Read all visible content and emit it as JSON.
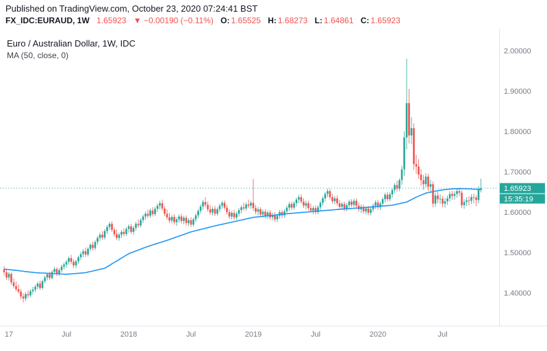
{
  "header": {
    "published": "Published on TradingView.com, October 23, 2020 07:24:41 BST",
    "symbol": "FX_IDC:EURAUD, 1W",
    "last": "1.65923",
    "change": "▼ −0.00190 (−0.11%)",
    "ohlc": [
      {
        "label": "O:",
        "value": "1.65525"
      },
      {
        "label": "H:",
        "value": "1.68273"
      },
      {
        "label": "L:",
        "value": "1.64861"
      },
      {
        "label": "C:",
        "value": "1.65923"
      }
    ]
  },
  "legend": {
    "title": "Euro / Australian Dollar, 1W, IDC",
    "ma": "MA (50, close, 0)"
  },
  "axis": {
    "price_ticks": [
      "2.00000",
      "1.90000",
      "1.80000",
      "1.70000",
      "1.60000",
      "1.50000",
      "1.40000"
    ],
    "price_badge": "1.65923",
    "countdown_badge": "15:35:19"
  },
  "colors": {
    "up": "#26a69a",
    "down": "#ef5350",
    "ma": "#2196f3",
    "axis_text": "#787b86",
    "border": "#e0e3eb",
    "badge": "#26a69a",
    "price_line": "#26a69a"
  },
  "chart_data": {
    "type": "candlestick",
    "title": "Euro / Australian Dollar, 1W, IDC",
    "symbol": "FX_IDC:EURAUD",
    "interval": "1W",
    "ylim": [
      1.36,
      2.04
    ],
    "y_ticks": [
      2.0,
      1.9,
      1.8,
      1.7,
      1.6,
      1.5,
      1.4
    ],
    "x_label_anchors": [
      [
        2,
        "17"
      ],
      [
        26,
        "Jul"
      ],
      [
        52,
        "2018"
      ],
      [
        78,
        "Jul"
      ],
      [
        104,
        "2019"
      ],
      [
        130,
        "Jul"
      ],
      [
        156,
        "2020"
      ],
      [
        183,
        "Jul"
      ]
    ],
    "last_close": 1.65923,
    "ma50_anchors": [
      [
        0,
        1.459
      ],
      [
        13,
        1.45
      ],
      [
        26,
        1.446
      ],
      [
        34,
        1.45
      ],
      [
        42,
        1.461
      ],
      [
        52,
        1.497
      ],
      [
        60,
        1.515
      ],
      [
        68,
        1.53
      ],
      [
        78,
        1.551
      ],
      [
        88,
        1.566
      ],
      [
        98,
        1.579
      ],
      [
        104,
        1.587
      ],
      [
        112,
        1.592
      ],
      [
        120,
        1.597
      ],
      [
        130,
        1.602
      ],
      [
        140,
        1.607
      ],
      [
        150,
        1.611
      ],
      [
        156,
        1.614
      ],
      [
        162,
        1.617
      ],
      [
        168,
        1.625
      ],
      [
        172,
        1.637
      ],
      [
        176,
        1.647
      ],
      [
        180,
        1.652
      ],
      [
        184,
        1.656
      ],
      [
        188,
        1.658
      ],
      [
        193,
        1.658
      ],
      [
        199,
        1.656
      ]
    ],
    "candles_ohlc": [
      [
        1.458,
        1.466,
        1.443,
        1.451
      ],
      [
        1.451,
        1.459,
        1.432,
        1.438
      ],
      [
        1.438,
        1.452,
        1.43,
        1.447
      ],
      [
        1.447,
        1.45,
        1.42,
        1.426
      ],
      [
        1.426,
        1.436,
        1.411,
        1.417
      ],
      [
        1.417,
        1.428,
        1.404,
        1.409
      ],
      [
        1.409,
        1.421,
        1.398,
        1.403
      ],
      [
        1.403,
        1.41,
        1.384,
        1.391
      ],
      [
        1.391,
        1.399,
        1.376,
        1.386
      ],
      [
        1.386,
        1.402,
        1.38,
        1.397
      ],
      [
        1.397,
        1.406,
        1.387,
        1.394
      ],
      [
        1.394,
        1.409,
        1.39,
        1.404
      ],
      [
        1.404,
        1.415,
        1.396,
        1.408
      ],
      [
        1.408,
        1.42,
        1.402,
        1.415
      ],
      [
        1.415,
        1.428,
        1.409,
        1.423
      ],
      [
        1.423,
        1.43,
        1.407,
        1.412
      ],
      [
        1.412,
        1.433,
        1.408,
        1.429
      ],
      [
        1.429,
        1.443,
        1.423,
        1.438
      ],
      [
        1.438,
        1.45,
        1.431,
        1.446
      ],
      [
        1.446,
        1.452,
        1.432,
        1.437
      ],
      [
        1.437,
        1.456,
        1.433,
        1.452
      ],
      [
        1.452,
        1.464,
        1.446,
        1.459
      ],
      [
        1.459,
        1.463,
        1.441,
        1.447
      ],
      [
        1.447,
        1.461,
        1.442,
        1.456
      ],
      [
        1.456,
        1.47,
        1.45,
        1.465
      ],
      [
        1.465,
        1.475,
        1.458,
        1.47
      ],
      [
        1.47,
        1.482,
        1.462,
        1.477
      ],
      [
        1.477,
        1.49,
        1.47,
        1.486
      ],
      [
        1.486,
        1.494,
        1.471,
        1.477
      ],
      [
        1.477,
        1.483,
        1.462,
        1.468
      ],
      [
        1.468,
        1.482,
        1.461,
        1.478
      ],
      [
        1.478,
        1.492,
        1.472,
        1.488
      ],
      [
        1.488,
        1.501,
        1.481,
        1.496
      ],
      [
        1.496,
        1.508,
        1.488,
        1.503
      ],
      [
        1.503,
        1.512,
        1.489,
        1.495
      ],
      [
        1.495,
        1.513,
        1.49,
        1.509
      ],
      [
        1.509,
        1.523,
        1.503,
        1.519
      ],
      [
        1.519,
        1.527,
        1.505,
        1.511
      ],
      [
        1.511,
        1.53,
        1.506,
        1.526
      ],
      [
        1.526,
        1.541,
        1.519,
        1.536
      ],
      [
        1.536,
        1.549,
        1.528,
        1.544
      ],
      [
        1.544,
        1.553,
        1.531,
        1.537
      ],
      [
        1.537,
        1.558,
        1.532,
        1.553
      ],
      [
        1.553,
        1.568,
        1.546,
        1.563
      ],
      [
        1.563,
        1.576,
        1.556,
        1.571
      ],
      [
        1.571,
        1.577,
        1.551,
        1.556
      ],
      [
        1.556,
        1.562,
        1.539,
        1.545
      ],
      [
        1.545,
        1.557,
        1.531,
        1.536
      ],
      [
        1.536,
        1.549,
        1.529,
        1.544
      ],
      [
        1.544,
        1.556,
        1.536,
        1.551
      ],
      [
        1.551,
        1.56,
        1.54,
        1.546
      ],
      [
        1.546,
        1.563,
        1.541,
        1.558
      ],
      [
        1.558,
        1.57,
        1.549,
        1.565
      ],
      [
        1.565,
        1.571,
        1.546,
        1.551
      ],
      [
        1.551,
        1.566,
        1.544,
        1.561
      ],
      [
        1.561,
        1.576,
        1.554,
        1.571
      ],
      [
        1.571,
        1.582,
        1.561,
        1.567
      ],
      [
        1.567,
        1.585,
        1.562,
        1.58
      ],
      [
        1.58,
        1.594,
        1.573,
        1.589
      ],
      [
        1.589,
        1.601,
        1.581,
        1.596
      ],
      [
        1.596,
        1.607,
        1.585,
        1.591
      ],
      [
        1.591,
        1.609,
        1.586,
        1.604
      ],
      [
        1.604,
        1.612,
        1.589,
        1.595
      ],
      [
        1.595,
        1.613,
        1.59,
        1.608
      ],
      [
        1.608,
        1.621,
        1.6,
        1.616
      ],
      [
        1.616,
        1.628,
        1.607,
        1.622
      ],
      [
        1.622,
        1.631,
        1.603,
        1.609
      ],
      [
        1.609,
        1.615,
        1.59,
        1.596
      ],
      [
        1.596,
        1.607,
        1.581,
        1.587
      ],
      [
        1.587,
        1.598,
        1.573,
        1.579
      ],
      [
        1.579,
        1.593,
        1.572,
        1.588
      ],
      [
        1.588,
        1.595,
        1.569,
        1.575
      ],
      [
        1.575,
        1.587,
        1.566,
        1.582
      ],
      [
        1.582,
        1.594,
        1.574,
        1.589
      ],
      [
        1.589,
        1.596,
        1.572,
        1.578
      ],
      [
        1.578,
        1.591,
        1.57,
        1.586
      ],
      [
        1.586,
        1.592,
        1.567,
        1.573
      ],
      [
        1.573,
        1.585,
        1.565,
        1.58
      ],
      [
        1.58,
        1.587,
        1.563,
        1.569
      ],
      [
        1.569,
        1.586,
        1.564,
        1.582
      ],
      [
        1.582,
        1.597,
        1.575,
        1.592
      ],
      [
        1.592,
        1.608,
        1.585,
        1.603
      ],
      [
        1.603,
        1.619,
        1.596,
        1.614
      ],
      [
        1.614,
        1.63,
        1.606,
        1.625
      ],
      [
        1.625,
        1.637,
        1.612,
        1.618
      ],
      [
        1.618,
        1.626,
        1.601,
        1.607
      ],
      [
        1.607,
        1.618,
        1.593,
        1.599
      ],
      [
        1.599,
        1.613,
        1.592,
        1.608
      ],
      [
        1.608,
        1.615,
        1.59,
        1.596
      ],
      [
        1.596,
        1.612,
        1.591,
        1.607
      ],
      [
        1.607,
        1.621,
        1.6,
        1.616
      ],
      [
        1.616,
        1.628,
        1.608,
        1.623
      ],
      [
        1.623,
        1.629,
        1.605,
        1.611
      ],
      [
        1.611,
        1.618,
        1.594,
        1.6
      ],
      [
        1.6,
        1.607,
        1.583,
        1.589
      ],
      [
        1.589,
        1.603,
        1.582,
        1.598
      ],
      [
        1.598,
        1.606,
        1.581,
        1.587
      ],
      [
        1.587,
        1.601,
        1.582,
        1.596
      ],
      [
        1.596,
        1.61,
        1.589,
        1.605
      ],
      [
        1.605,
        1.617,
        1.597,
        1.612
      ],
      [
        1.612,
        1.623,
        1.603,
        1.609
      ],
      [
        1.609,
        1.624,
        1.604,
        1.619
      ],
      [
        1.619,
        1.631,
        1.61,
        1.616
      ],
      [
        1.616,
        1.628,
        1.608,
        1.623
      ],
      [
        1.623,
        1.682,
        1.603,
        1.61
      ],
      [
        1.61,
        1.618,
        1.595,
        1.601
      ],
      [
        1.601,
        1.613,
        1.592,
        1.607
      ],
      [
        1.607,
        1.612,
        1.589,
        1.594
      ],
      [
        1.594,
        1.606,
        1.586,
        1.601
      ],
      [
        1.601,
        1.607,
        1.584,
        1.59
      ],
      [
        1.59,
        1.604,
        1.583,
        1.599
      ],
      [
        1.599,
        1.605,
        1.581,
        1.587
      ],
      [
        1.587,
        1.599,
        1.579,
        1.593
      ],
      [
        1.593,
        1.6,
        1.576,
        1.582
      ],
      [
        1.582,
        1.596,
        1.575,
        1.591
      ],
      [
        1.591,
        1.605,
        1.584,
        1.6
      ],
      [
        1.6,
        1.606,
        1.585,
        1.592
      ],
      [
        1.592,
        1.607,
        1.586,
        1.602
      ],
      [
        1.602,
        1.616,
        1.595,
        1.611
      ],
      [
        1.611,
        1.625,
        1.603,
        1.62
      ],
      [
        1.62,
        1.626,
        1.605,
        1.611
      ],
      [
        1.611,
        1.627,
        1.606,
        1.622
      ],
      [
        1.622,
        1.636,
        1.614,
        1.631
      ],
      [
        1.631,
        1.643,
        1.622,
        1.637
      ],
      [
        1.637,
        1.644,
        1.62,
        1.626
      ],
      [
        1.626,
        1.634,
        1.61,
        1.616
      ],
      [
        1.616,
        1.628,
        1.607,
        1.622
      ],
      [
        1.622,
        1.628,
        1.604,
        1.61
      ],
      [
        1.61,
        1.621,
        1.599,
        1.604
      ],
      [
        1.604,
        1.615,
        1.595,
        1.61
      ],
      [
        1.61,
        1.616,
        1.594,
        1.6
      ],
      [
        1.6,
        1.617,
        1.595,
        1.612
      ],
      [
        1.612,
        1.628,
        1.605,
        1.623
      ],
      [
        1.623,
        1.639,
        1.616,
        1.634
      ],
      [
        1.634,
        1.65,
        1.626,
        1.645
      ],
      [
        1.645,
        1.658,
        1.637,
        1.652
      ],
      [
        1.652,
        1.657,
        1.631,
        1.637
      ],
      [
        1.637,
        1.645,
        1.621,
        1.627
      ],
      [
        1.627,
        1.64,
        1.619,
        1.634
      ],
      [
        1.634,
        1.641,
        1.616,
        1.622
      ],
      [
        1.622,
        1.63,
        1.607,
        1.613
      ],
      [
        1.613,
        1.625,
        1.605,
        1.62
      ],
      [
        1.62,
        1.626,
        1.602,
        1.608
      ],
      [
        1.608,
        1.622,
        1.602,
        1.617
      ],
      [
        1.617,
        1.631,
        1.609,
        1.626
      ],
      [
        1.626,
        1.632,
        1.612,
        1.618
      ],
      [
        1.618,
        1.633,
        1.611,
        1.628
      ],
      [
        1.628,
        1.634,
        1.61,
        1.616
      ],
      [
        1.616,
        1.624,
        1.601,
        1.607
      ],
      [
        1.607,
        1.619,
        1.598,
        1.613
      ],
      [
        1.613,
        1.619,
        1.596,
        1.602
      ],
      [
        1.602,
        1.614,
        1.594,
        1.609
      ],
      [
        1.609,
        1.615,
        1.592,
        1.598
      ],
      [
        1.598,
        1.612,
        1.592,
        1.607
      ],
      [
        1.607,
        1.621,
        1.6,
        1.616
      ],
      [
        1.616,
        1.629,
        1.608,
        1.624
      ],
      [
        1.624,
        1.63,
        1.606,
        1.612
      ],
      [
        1.612,
        1.626,
        1.605,
        1.621
      ],
      [
        1.621,
        1.637,
        1.614,
        1.632
      ],
      [
        1.632,
        1.648,
        1.624,
        1.643
      ],
      [
        1.643,
        1.65,
        1.626,
        1.632
      ],
      [
        1.632,
        1.649,
        1.627,
        1.644
      ],
      [
        1.644,
        1.66,
        1.636,
        1.655
      ],
      [
        1.655,
        1.672,
        1.647,
        1.667
      ],
      [
        1.667,
        1.678,
        1.651,
        1.658
      ],
      [
        1.658,
        1.684,
        1.652,
        1.679
      ],
      [
        1.679,
        1.715,
        1.668,
        1.706
      ],
      [
        1.706,
        1.8,
        1.69,
        1.785
      ],
      [
        1.785,
        1.98,
        1.755,
        1.87
      ],
      [
        1.87,
        1.905,
        1.77,
        1.79
      ],
      [
        1.79,
        1.835,
        1.768,
        1.808
      ],
      [
        1.808,
        1.82,
        1.705,
        1.719
      ],
      [
        1.719,
        1.742,
        1.695,
        1.713
      ],
      [
        1.713,
        1.731,
        1.683,
        1.693
      ],
      [
        1.693,
        1.706,
        1.665,
        1.679
      ],
      [
        1.679,
        1.692,
        1.655,
        1.669
      ],
      [
        1.669,
        1.697,
        1.661,
        1.688
      ],
      [
        1.688,
        1.695,
        1.652,
        1.663
      ],
      [
        1.663,
        1.68,
        1.65,
        1.669
      ],
      [
        1.669,
        1.676,
        1.612,
        1.621
      ],
      [
        1.621,
        1.648,
        1.613,
        1.641
      ],
      [
        1.641,
        1.651,
        1.622,
        1.632
      ],
      [
        1.632,
        1.644,
        1.62,
        1.633
      ],
      [
        1.633,
        1.64,
        1.612,
        1.621
      ],
      [
        1.621,
        1.635,
        1.611,
        1.627
      ],
      [
        1.627,
        1.641,
        1.618,
        1.634
      ],
      [
        1.634,
        1.652,
        1.626,
        1.645
      ],
      [
        1.645,
        1.653,
        1.63,
        1.64
      ],
      [
        1.64,
        1.652,
        1.631,
        1.645
      ],
      [
        1.645,
        1.659,
        1.636,
        1.652
      ],
      [
        1.652,
        1.661,
        1.64,
        1.648
      ],
      [
        1.648,
        1.654,
        1.61,
        1.617
      ],
      [
        1.617,
        1.632,
        1.608,
        1.625
      ],
      [
        1.625,
        1.637,
        1.615,
        1.629
      ],
      [
        1.629,
        1.639,
        1.617,
        1.628
      ],
      [
        1.628,
        1.644,
        1.62,
        1.637
      ],
      [
        1.637,
        1.646,
        1.622,
        1.636
      ],
      [
        1.636,
        1.642,
        1.615,
        1.63
      ],
      [
        1.63,
        1.664,
        1.622,
        1.657
      ],
      [
        1.65525,
        1.68273,
        1.64861,
        1.65923
      ]
    ]
  }
}
